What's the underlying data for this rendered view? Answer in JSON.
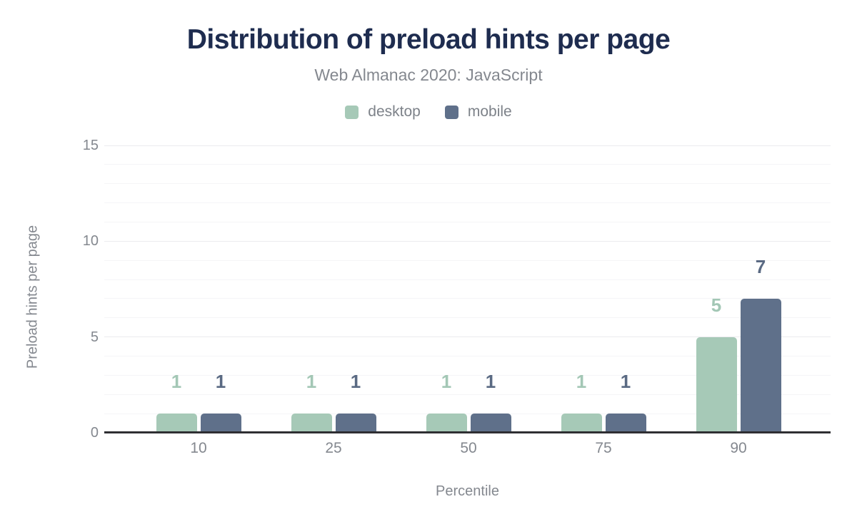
{
  "title": "Distribution of preload hints per page",
  "subtitle": "Web Almanac 2020: JavaScript",
  "colors": {
    "title": "#1e2c4f",
    "axis_text": "#84888f",
    "axis_line": "#2f2f32",
    "gridline_minor": "#f5f5f7",
    "gridline_major": "#ebebee",
    "desktop": "#a6c9b7",
    "mobile": "#5f708a",
    "desktop_label": "#a3c7b5",
    "mobile_label": "#5a6a83"
  },
  "chart_data": {
    "type": "bar",
    "title": "Distribution of preload hints per page",
    "subtitle": "Web Almanac 2020: JavaScript",
    "categories": [
      "10",
      "25",
      "50",
      "75",
      "90"
    ],
    "series": [
      {
        "name": "desktop",
        "color": "#a6c9b7",
        "label_color": "#a3c7b5",
        "values": [
          1,
          1,
          1,
          1,
          5
        ]
      },
      {
        "name": "mobile",
        "color": "#5f708a",
        "label_color": "#5a6a83",
        "values": [
          1,
          1,
          1,
          1,
          7
        ]
      }
    ],
    "xlabel": "Percentile",
    "ylabel": "Preload hints per page",
    "ylim": [
      0,
      15
    ],
    "yticks": [
      0,
      5,
      10,
      15
    ],
    "grid": "horizontal, minor every 1, major every 5",
    "legend_position": "top",
    "data_labels": true
  }
}
